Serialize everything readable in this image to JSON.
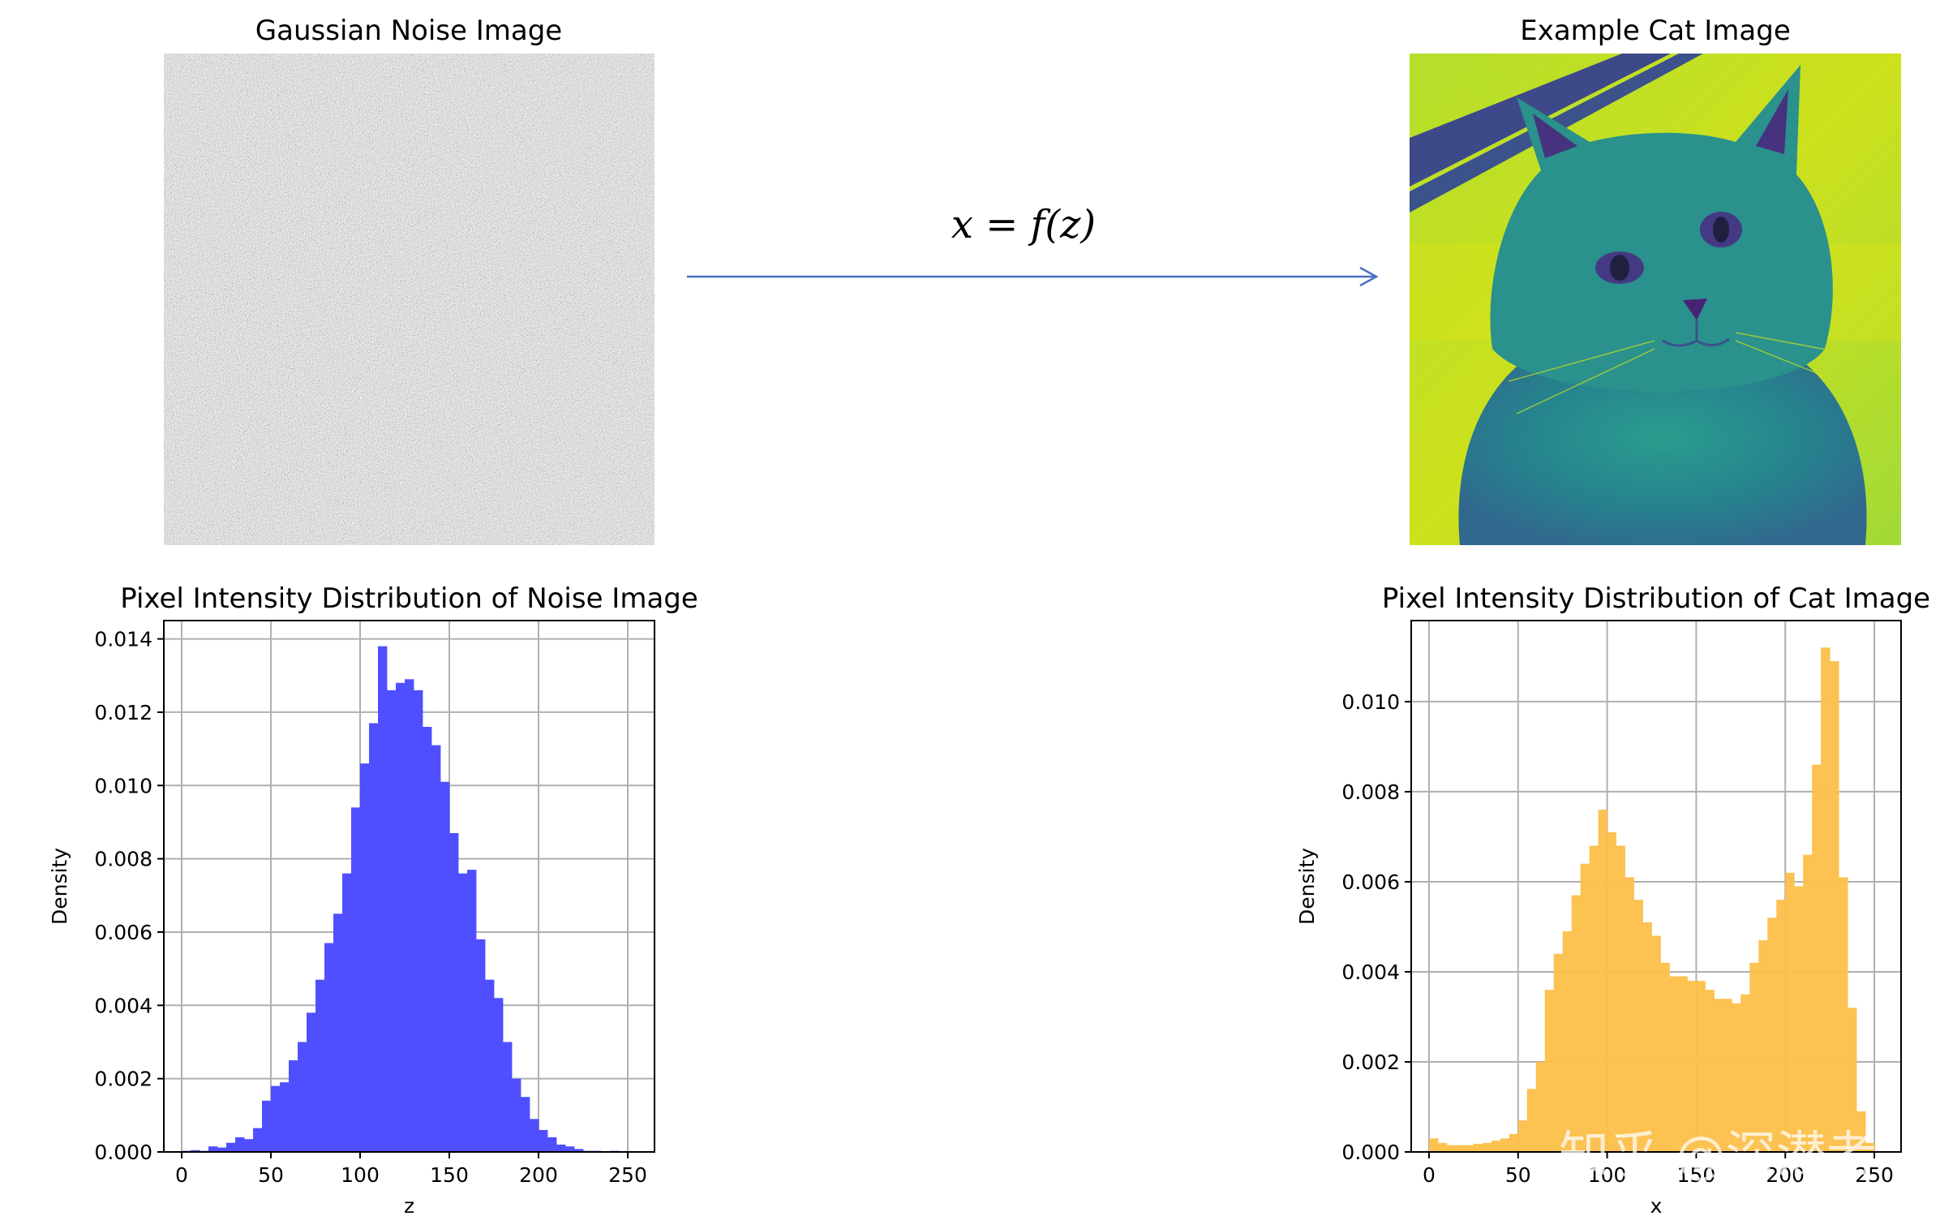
{
  "noise_panel": {
    "title": "Gaussian Noise Image"
  },
  "cat_panel": {
    "title": "Example Cat Image"
  },
  "mapping": {
    "formula": "x = f(z)",
    "arrow_color": "#4a6fbf"
  },
  "watermark": {
    "text": "知乎 @深潜者"
  },
  "colors": {
    "noise_hist": "#4b4bff",
    "cat_hist": "#fcbf49"
  },
  "chart_data": [
    {
      "type": "bar",
      "title": "Pixel Intensity Distribution of Noise Image",
      "xlabel": "z",
      "ylabel": "Density",
      "xlim": [
        -10,
        265
      ],
      "ylim": [
        0,
        0.0145
      ],
      "x_ticks": [
        "0",
        "50",
        "100",
        "150",
        "200",
        "250"
      ],
      "y_ticks": [
        "0.000",
        "0.002",
        "0.004",
        "0.006",
        "0.008",
        "0.010",
        "0.012",
        "0.014"
      ],
      "grid": true,
      "color": "#4b4bff",
      "bin_edges_start": 0,
      "bin_width": 5,
      "values": [
        3e-05,
        5e-05,
        3e-05,
        0.00015,
        0.00012,
        0.00025,
        0.0004,
        0.00035,
        0.00065,
        0.0014,
        0.0018,
        0.0019,
        0.0025,
        0.003,
        0.0038,
        0.0047,
        0.0057,
        0.0065,
        0.0076,
        0.0094,
        0.0106,
        0.0117,
        0.0138,
        0.0126,
        0.0128,
        0.0129,
        0.0126,
        0.0116,
        0.0111,
        0.0101,
        0.0087,
        0.0076,
        0.0077,
        0.0058,
        0.0047,
        0.0042,
        0.003,
        0.002,
        0.0015,
        0.0009,
        0.0006,
        0.0004,
        0.0002,
        0.00015,
        8e-05,
        3e-05,
        3e-05,
        1e-05,
        3e-05,
        2e-05
      ]
    },
    {
      "type": "bar",
      "title": "Pixel Intensity Distribution of Cat Image",
      "xlabel": "x",
      "ylabel": "Density",
      "xlim": [
        -10,
        265
      ],
      "ylim": [
        0,
        0.0118
      ],
      "x_ticks": [
        "0",
        "50",
        "100",
        "150",
        "200",
        "250"
      ],
      "y_ticks": [
        "0.000",
        "0.002",
        "0.004",
        "0.006",
        "0.008",
        "0.010"
      ],
      "grid": true,
      "color": "#fcbf49",
      "bin_edges_start": 0,
      "bin_width": 5,
      "values": [
        0.0003,
        0.0002,
        0.00015,
        0.00015,
        0.00015,
        0.00018,
        0.0002,
        0.00025,
        0.0003,
        0.0004,
        0.0007,
        0.0014,
        0.002,
        0.0036,
        0.0044,
        0.0049,
        0.0057,
        0.0064,
        0.0068,
        0.0076,
        0.0071,
        0.0068,
        0.0061,
        0.0056,
        0.0051,
        0.0048,
        0.0042,
        0.0039,
        0.0039,
        0.0038,
        0.0038,
        0.0036,
        0.0034,
        0.0034,
        0.0033,
        0.0035,
        0.0042,
        0.0047,
        0.0052,
        0.0056,
        0.0062,
        0.0059,
        0.0066,
        0.0086,
        0.0112,
        0.0109,
        0.0061,
        0.0032,
        0.0009,
        0.0002
      ]
    }
  ]
}
